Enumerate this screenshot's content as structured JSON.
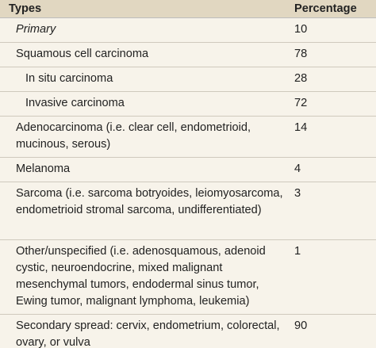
{
  "table": {
    "headers": {
      "type": "Types",
      "percentage": "Percentage"
    },
    "rows": [
      {
        "type": "Primary",
        "percentage": "10"
      },
      {
        "type": "Squamous cell carcinoma",
        "percentage": "78"
      },
      {
        "type": "In situ carcinoma",
        "percentage": "28"
      },
      {
        "type": "Invasive carcinoma",
        "percentage": "72"
      },
      {
        "type": "Adenocarcinoma (i.e. clear cell, endometrioid, mucinous, serous)",
        "percentage": "14"
      },
      {
        "type": "Melanoma",
        "percentage": "4"
      },
      {
        "type": "Sarcoma (i.e. sarcoma botryoides, leiomyosarcoma, endometrioid stromal sarcoma, undifferentiated)",
        "percentage": "3"
      },
      {
        "type": "Other/unspecified (i.e. adenosquamous, adenoid cystic, neuroendocrine, mixed malignant mesenchymal tumors, endodermal sinus tumor, Ewing tumor, malignant lymphoma, leukemia)",
        "percentage": "1"
      },
      {
        "type": "Secondary spread: cervix, endometrium, colorectal, ovary, or vulva",
        "percentage": "90"
      }
    ]
  }
}
